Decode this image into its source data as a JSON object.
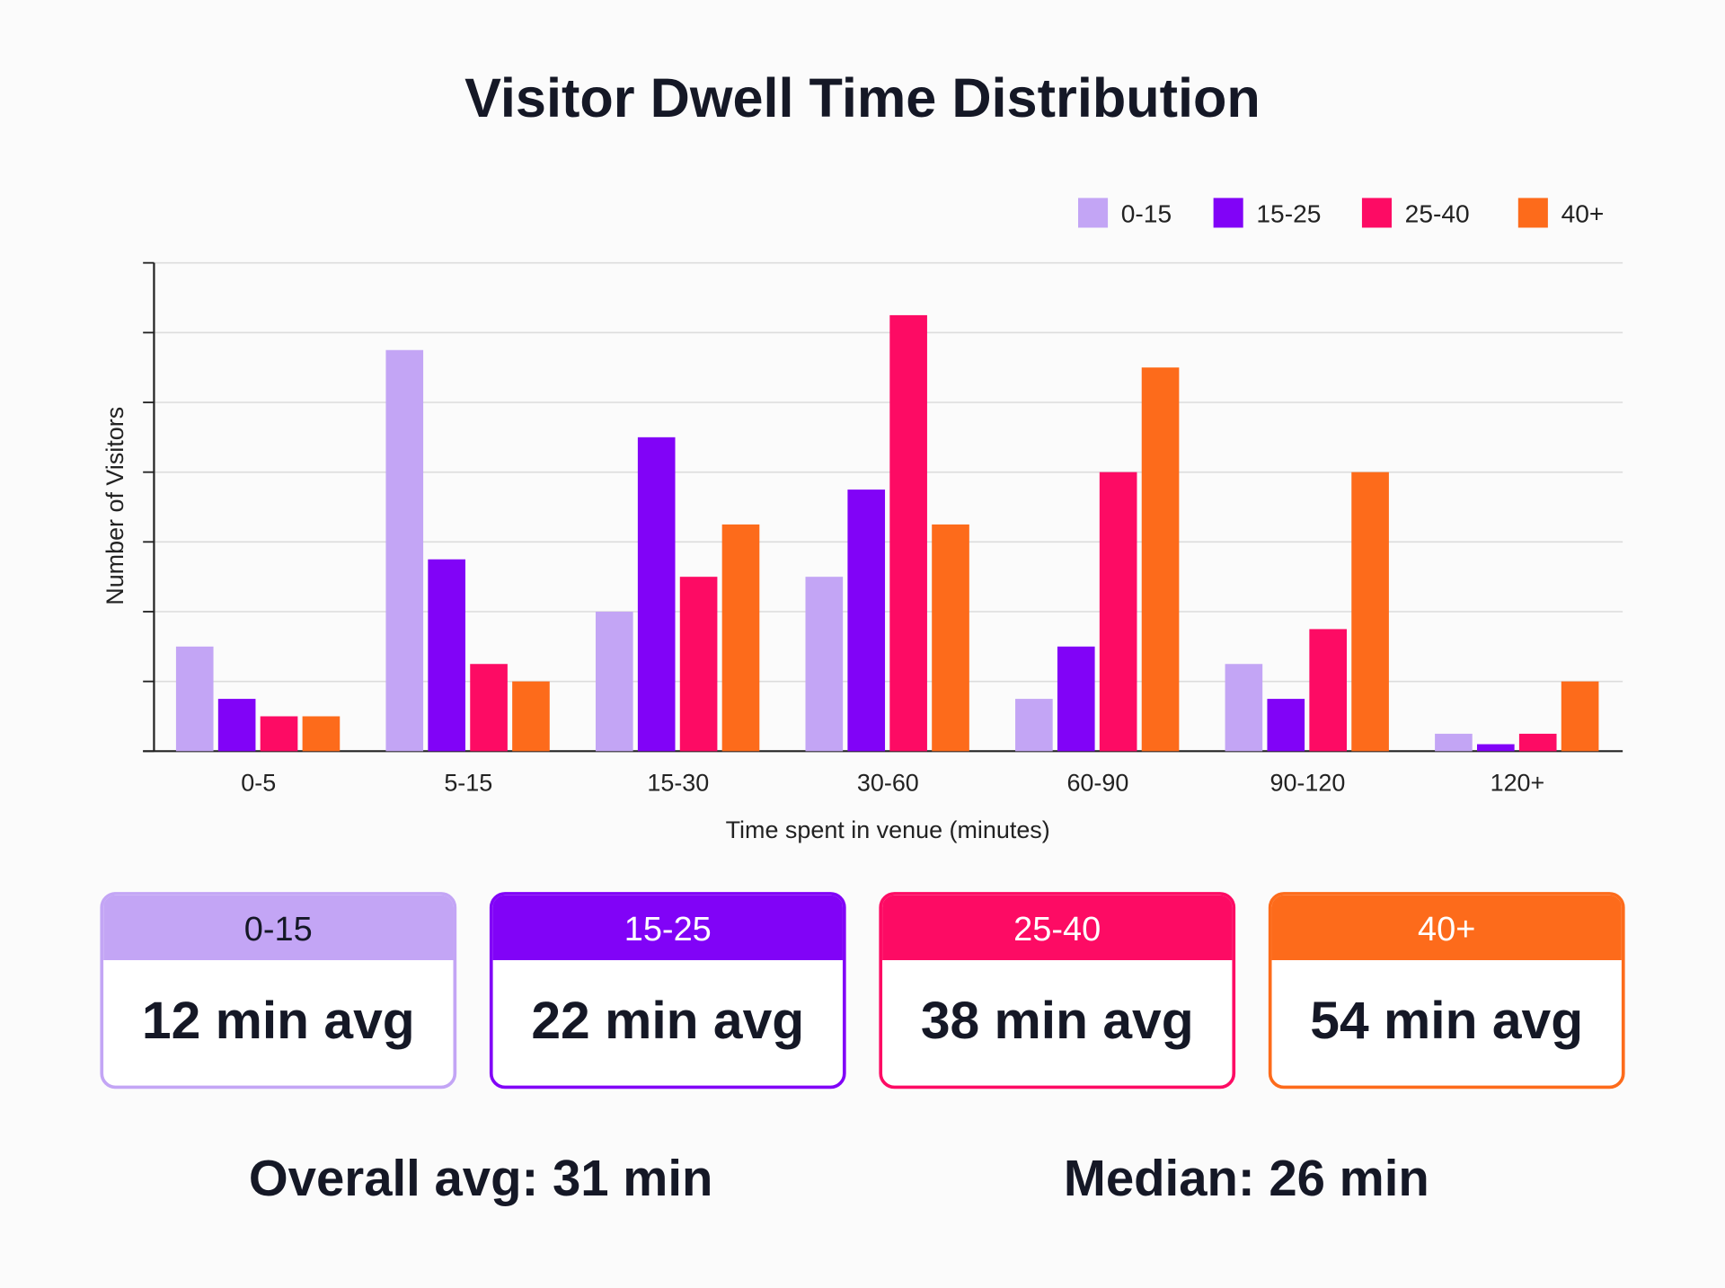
{
  "chart_data": {
    "type": "bar",
    "title": "Visitor Dwell Time Distribution",
    "xlabel": "Time spent in venue (minutes)",
    "ylabel": "Number of Visitors",
    "ylim": [
      0,
      7
    ],
    "y_tick_labels": "none",
    "grid": true,
    "legend": "top-right",
    "categories": [
      "0-5",
      "5-15",
      "15-30",
      "30-60",
      "60-90",
      "90-120",
      "120+"
    ],
    "series": [
      {
        "name": "0-15",
        "color": "#c3a5f5",
        "values": [
          1.5,
          5.75,
          2.0,
          2.5,
          0.75,
          1.25,
          0.25
        ]
      },
      {
        "name": "15-25",
        "color": "#8103f7",
        "values": [
          0.75,
          2.75,
          4.5,
          3.75,
          1.5,
          0.75,
          0.1
        ]
      },
      {
        "name": "25-40",
        "color": "#fd0b64",
        "values": [
          0.5,
          1.25,
          2.5,
          6.25,
          4.0,
          1.75,
          0.25
        ]
      },
      {
        "name": "40+",
        "color": "#fd6b1b",
        "values": [
          0.5,
          1.0,
          3.25,
          3.25,
          5.5,
          4.0,
          1.0
        ]
      }
    ]
  },
  "cards": [
    {
      "label": "0-15",
      "value": "12 min avg",
      "color": "#c3a5f5",
      "text_color": "#151826"
    },
    {
      "label": "15-25",
      "value": "22 min avg",
      "color": "#8103f7",
      "text_color": "#ffffff"
    },
    {
      "label": "25-40",
      "value": "38 min avg",
      "color": "#fd0b64",
      "text_color": "#ffffff"
    },
    {
      "label": "40+",
      "value": "54 min avg",
      "color": "#fd6b1b",
      "text_color": "#ffffff"
    }
  ],
  "summary": {
    "overall": "Overall avg: 31 min",
    "median": "Median: 26 min"
  }
}
